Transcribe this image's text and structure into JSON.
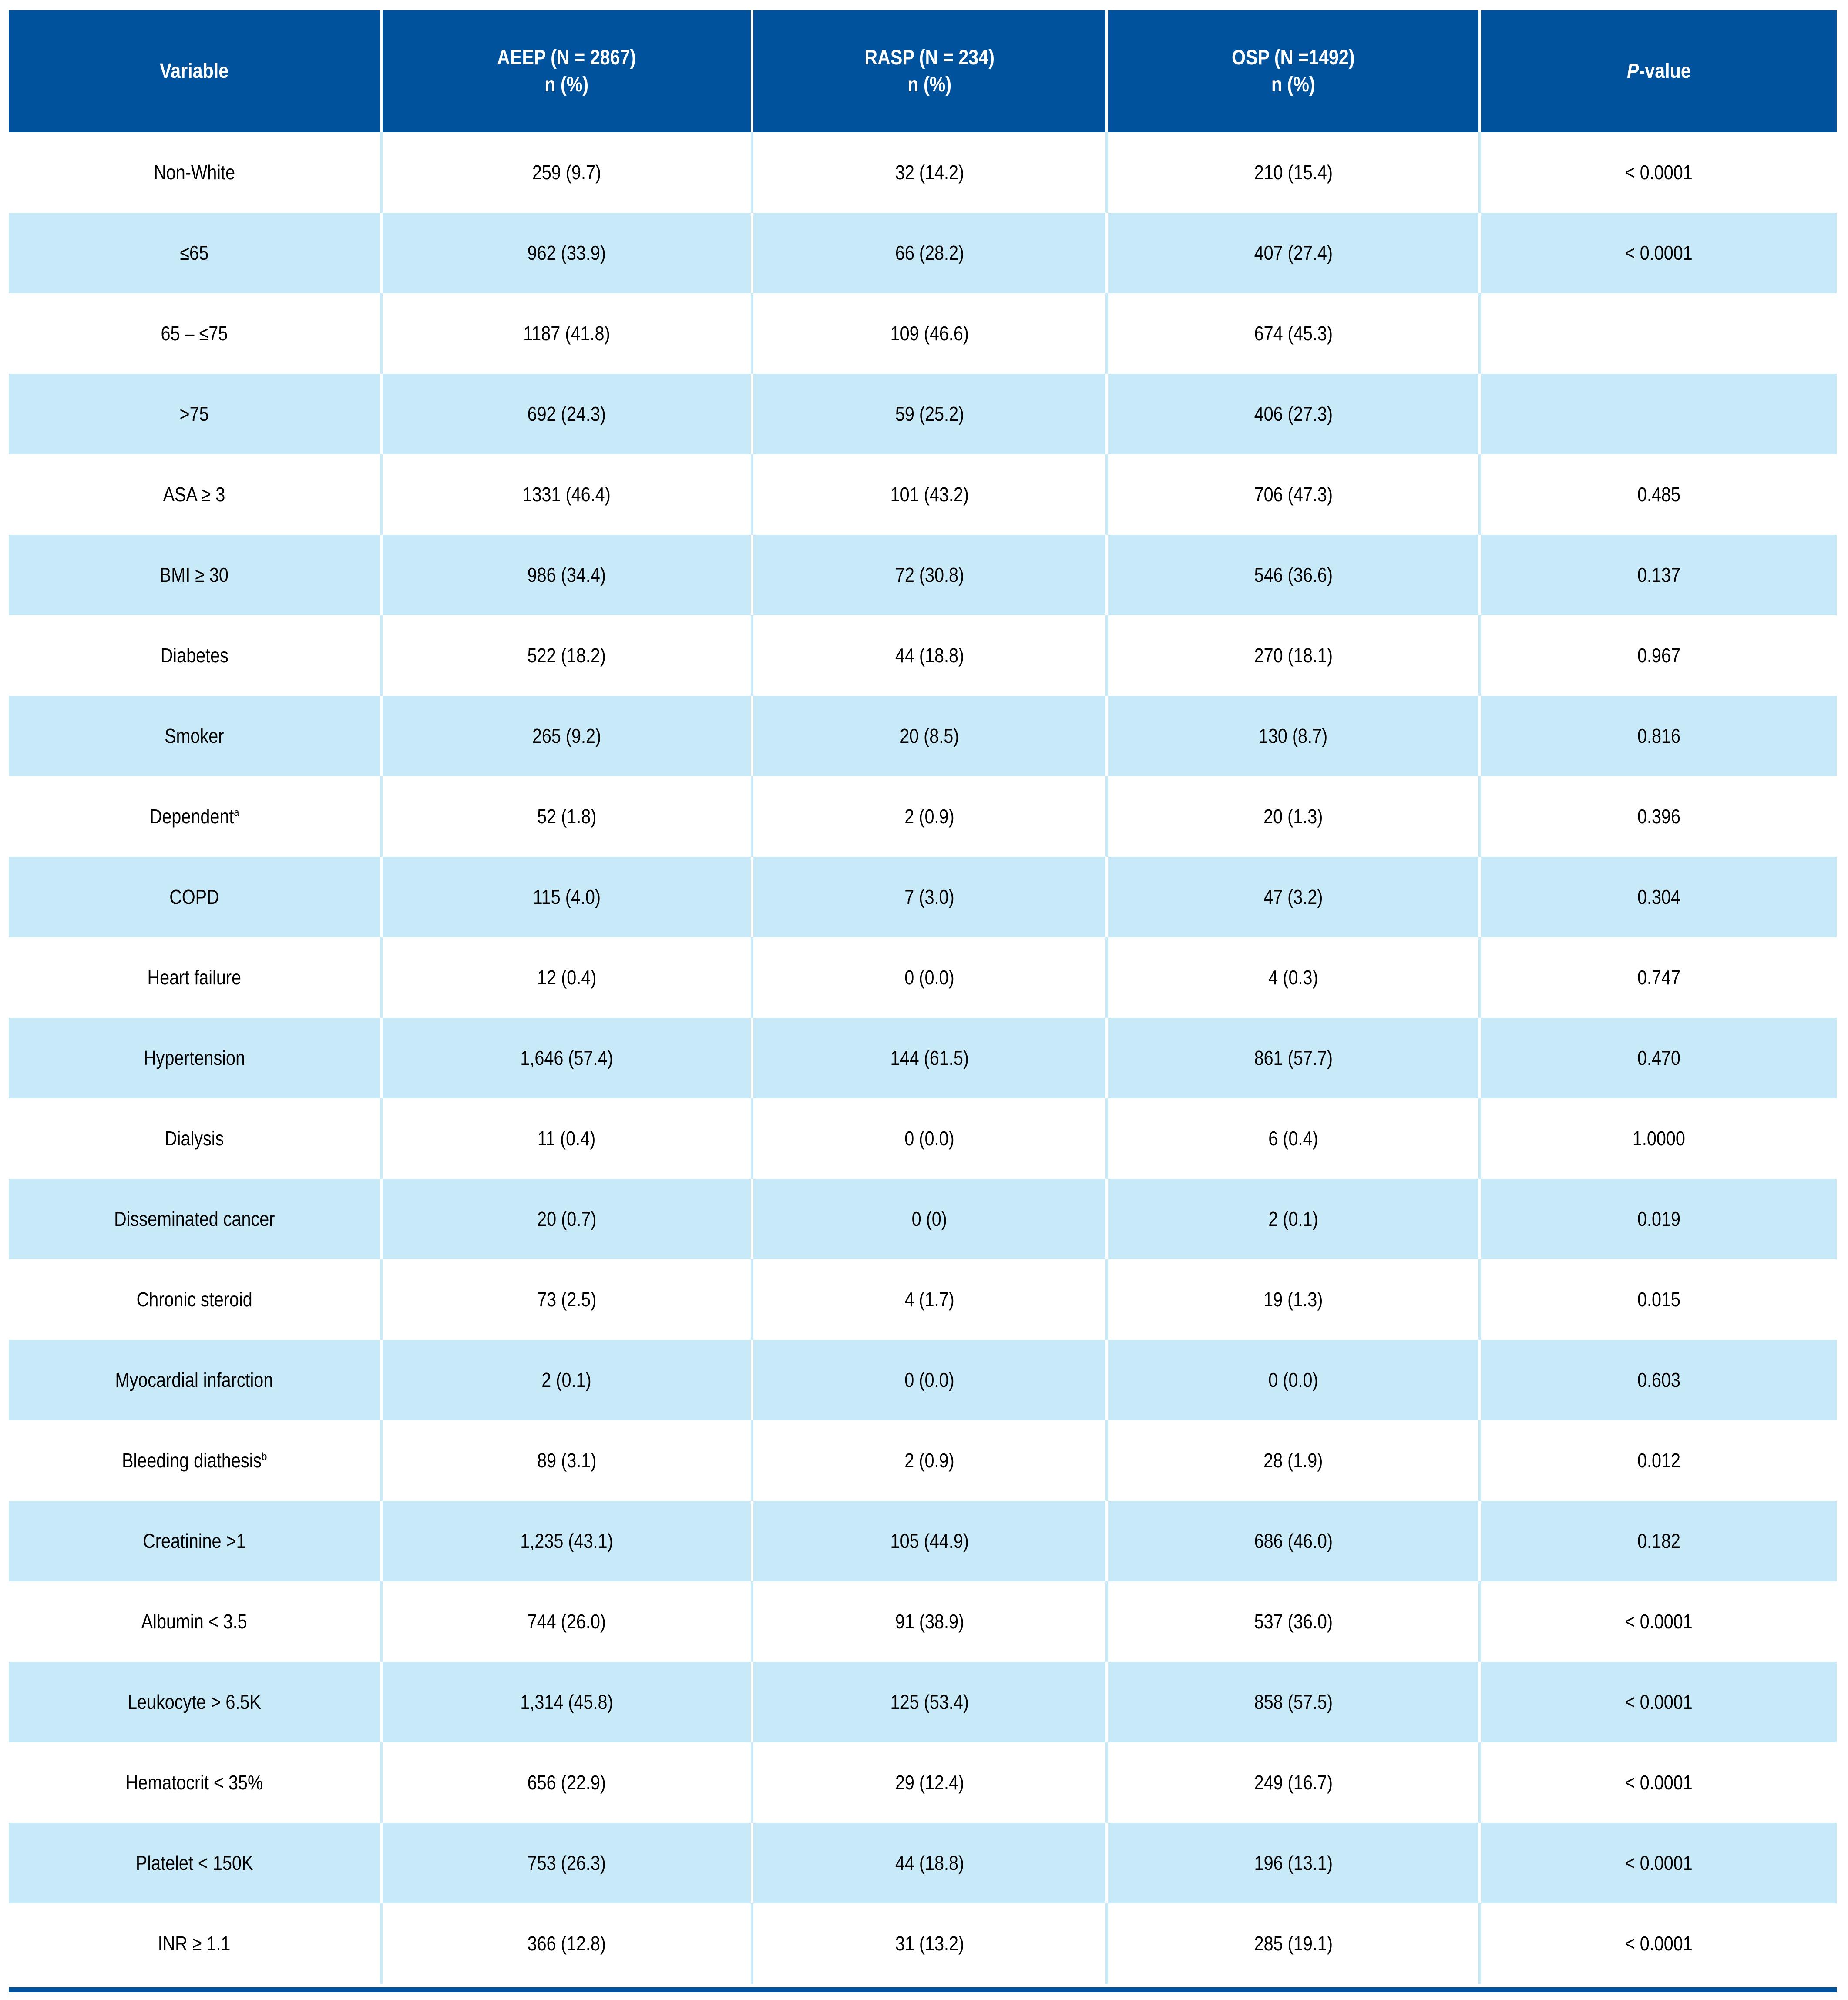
{
  "colors": {
    "header_bg": "#00529D",
    "alt_row_bg": "#C8E9F8",
    "bottom_bar": "#00529D",
    "header_text": "#FFFFFF",
    "body_text": "#000000",
    "page_bg": "#FFFFFF"
  },
  "table": {
    "header": {
      "variable_label": "Variable",
      "aeep_line1": "AEEP (N = 2867)",
      "aeep_line2": "n (%)",
      "rasp_line1": "RASP (N = 234)",
      "rasp_line2": "n (%)",
      "osp_line1": "OSP (N =1492)",
      "osp_line2": "n (%)",
      "p_italic": "P",
      "p_rest": "-value"
    },
    "rows": [
      {
        "label": "Non-White",
        "sup": "",
        "aeep": "259 (9.7)",
        "rasp": "32 (14.2)",
        "osp": "210 (15.4)",
        "p": "< 0.0001"
      },
      {
        "label": "≤65",
        "sup": "",
        "aeep": "962 (33.9)",
        "rasp": "66 (28.2)",
        "osp": "407 (27.4)",
        "p": "< 0.0001"
      },
      {
        "label": "65 – ≤75",
        "sup": "",
        "aeep": "1187 (41.8)",
        "rasp": "109 (46.6)",
        "osp": "674 (45.3)",
        "p": ""
      },
      {
        "label": ">75",
        "sup": "",
        "aeep": "692 (24.3)",
        "rasp": "59 (25.2)",
        "osp": "406 (27.3)",
        "p": ""
      },
      {
        "label": "ASA ≥ 3",
        "sup": "",
        "aeep": "1331 (46.4)",
        "rasp": "101 (43.2)",
        "osp": "706 (47.3)",
        "p": "0.485"
      },
      {
        "label": "BMI ≥ 30",
        "sup": "",
        "aeep": "986 (34.4)",
        "rasp": "72 (30.8)",
        "osp": "546 (36.6)",
        "p": "0.137"
      },
      {
        "label": "Diabetes",
        "sup": "",
        "aeep": "522 (18.2)",
        "rasp": "44 (18.8)",
        "osp": "270 (18.1)",
        "p": "0.967"
      },
      {
        "label": "Smoker",
        "sup": "",
        "aeep": "265 (9.2)",
        "rasp": "20 (8.5)",
        "osp": "130 (8.7)",
        "p": "0.816"
      },
      {
        "label": "Dependent",
        "sup": "a",
        "aeep": "52 (1.8)",
        "rasp": "2 (0.9)",
        "osp": "20 (1.3)",
        "p": "0.396"
      },
      {
        "label": "COPD",
        "sup": "",
        "aeep": "115 (4.0)",
        "rasp": "7 (3.0)",
        "osp": "47 (3.2)",
        "p": "0.304"
      },
      {
        "label": "Heart failure",
        "sup": "",
        "aeep": "12 (0.4)",
        "rasp": "0 (0.0)",
        "osp": "4 (0.3)",
        "p": "0.747"
      },
      {
        "label": "Hypertension",
        "sup": "",
        "aeep": "1,646 (57.4)",
        "rasp": "144 (61.5)",
        "osp": "861 (57.7)",
        "p": "0.470"
      },
      {
        "label": "Dialysis",
        "sup": "",
        "aeep": "11 (0.4)",
        "rasp": "0 (0.0)",
        "osp": "6 (0.4)",
        "p": "1.0000"
      },
      {
        "label": "Disseminated cancer",
        "sup": "",
        "aeep": "20 (0.7)",
        "rasp": "0 (0)",
        "osp": "2 (0.1)",
        "p": "0.019"
      },
      {
        "label": "Chronic steroid",
        "sup": "",
        "aeep": "73 (2.5)",
        "rasp": "4 (1.7)",
        "osp": "19 (1.3)",
        "p": "0.015"
      },
      {
        "label": "Myocardial infarction",
        "sup": "",
        "aeep": "2 (0.1)",
        "rasp": "0 (0.0)",
        "osp": "0 (0.0)",
        "p": "0.603"
      },
      {
        "label": "Bleeding diathesis",
        "sup": "b",
        "aeep": "89 (3.1)",
        "rasp": "2 (0.9)",
        "osp": "28 (1.9)",
        "p": "0.012"
      },
      {
        "label": "Creatinine >1",
        "sup": "",
        "aeep": "1,235 (43.1)",
        "rasp": "105 (44.9)",
        "osp": "686 (46.0)",
        "p": "0.182"
      },
      {
        "label": "Albumin < 3.5",
        "sup": "",
        "aeep": "744 (26.0)",
        "rasp": "91 (38.9)",
        "osp": "537 (36.0)",
        "p": "< 0.0001"
      },
      {
        "label": "Leukocyte > 6.5K",
        "sup": "",
        "aeep": "1,314 (45.8)",
        "rasp": "125 (53.4)",
        "osp": "858 (57.5)",
        "p": "< 0.0001"
      },
      {
        "label": "Hematocrit < 35%",
        "sup": "",
        "aeep": "656 (22.9)",
        "rasp": "29 (12.4)",
        "osp": "249 (16.7)",
        "p": "< 0.0001"
      },
      {
        "label": "Platelet < 150K",
        "sup": "",
        "aeep": "753 (26.3)",
        "rasp": "44 (18.8)",
        "osp": "196 (13.1)",
        "p": "< 0.0001"
      },
      {
        "label": "INR ≥ 1.1",
        "sup": "",
        "aeep": "366 (12.8)",
        "rasp": "31 (13.2)",
        "osp": "285 (19.1)",
        "p": "< 0.0001"
      }
    ]
  }
}
